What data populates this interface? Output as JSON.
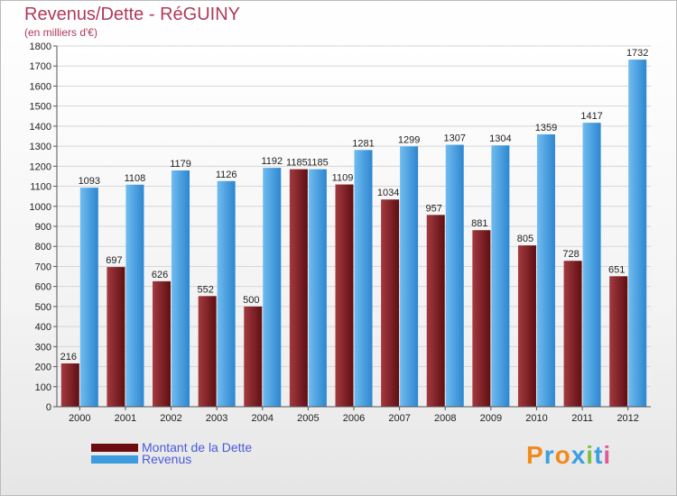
{
  "title": "Revenus/Dette - RéGUINY",
  "subtitle": "(en milliers d'€)",
  "logo_text": "Proxiti",
  "chart_data": {
    "type": "bar",
    "categories": [
      "2000",
      "2001",
      "2002",
      "2003",
      "2004",
      "2005",
      "2006",
      "2007",
      "2008",
      "2009",
      "2010",
      "2011",
      "2012"
    ],
    "series": [
      {
        "name": "Montant de la Dette",
        "color": "#7a1e22",
        "values": [
          216,
          697,
          626,
          552,
          500,
          1185,
          1109,
          1034,
          957,
          881,
          805,
          728,
          651
        ]
      },
      {
        "name": "Revenus",
        "color": "#3d9be0",
        "values": [
          1093,
          1108,
          1179,
          1126,
          1192,
          1185,
          1281,
          1299,
          1307,
          1304,
          1359,
          1417,
          1732
        ]
      }
    ],
    "ylim": [
      0,
      1800
    ],
    "yticks": [
      0,
      100,
      200,
      300,
      400,
      500,
      600,
      700,
      800,
      900,
      1000,
      1100,
      1200,
      1300,
      1400,
      1500,
      1600,
      1700,
      1800
    ],
    "grid": true,
    "legend_position": "bottom-left"
  },
  "legend": [
    {
      "label": "Montant de la Dette",
      "color": "#6b0d10"
    },
    {
      "label": "Revenus",
      "color": "#3d9be0"
    }
  ]
}
